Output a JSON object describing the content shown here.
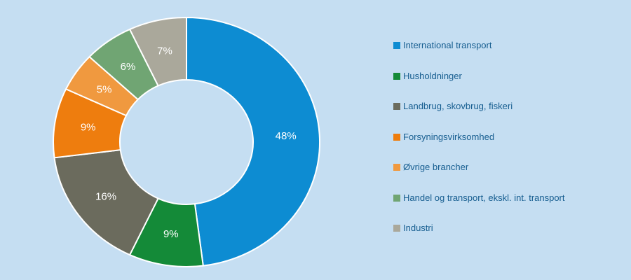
{
  "background": "#c5def2",
  "chart_data": {
    "type": "pie",
    "subtype": "donut",
    "categories": [
      "International transport",
      "Husholdninger",
      "Landbrug, skovbrug, fiskeri",
      "Forsyningsvirksomhed",
      "Øvrige brancher",
      "Handel og transport, ekskl. int. transport",
      "Industri"
    ],
    "values": [
      48,
      9,
      16,
      9,
      5,
      6,
      7
    ],
    "data_labels": [
      "48%",
      "9%",
      "16%",
      "9%",
      "5%",
      "6%",
      "7%"
    ],
    "colors": [
      "#0d8cd2",
      "#148a38",
      "#6b6b5d",
      "#ee7d0e",
      "#f0993f",
      "#70a573",
      "#aaa89b"
    ],
    "start_angle_deg": 0,
    "direction": "clockwise",
    "legend_position": "right",
    "data_label_color": "#ffffff",
    "legend_text_color": "#175e90",
    "slice_border_color": "#ffffff"
  }
}
